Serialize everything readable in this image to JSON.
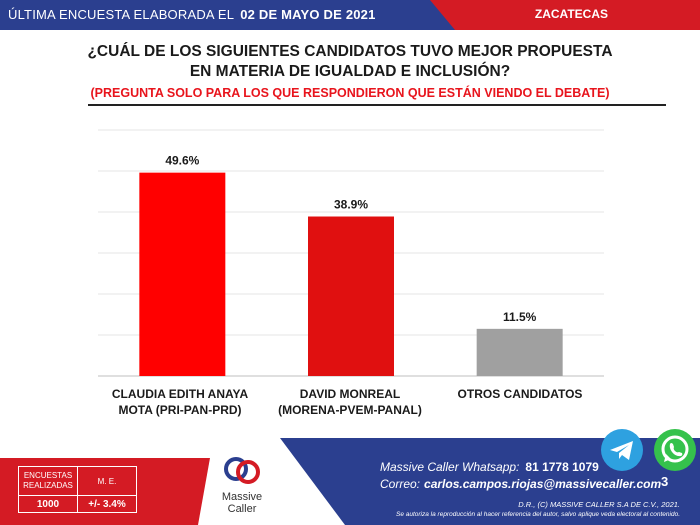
{
  "banner": {
    "prefix": "ÚLTIMA ENCUESTA ELABORADA EL",
    "date": "02 DE MAYO DE 2021",
    "region": "ZACATECAS"
  },
  "question": {
    "line1": "¿CUÁL DE LOS SIGUIENTES CANDIDATOS TUVO MEJOR PROPUESTA",
    "line2": "EN MATERIA DE IGUALDAD E INCLUSIÓN?",
    "note": "(PREGUNTA SOLO PARA LOS QUE RESPONDIERON QUE ESTÁN VIENDO EL DEBATE)"
  },
  "chart_data": {
    "type": "bar",
    "title": "¿CUÁL DE LOS SIGUIENTES CANDIDATOS TUVO MEJOR PROPUESTA EN MATERIA DE IGUALDAD E INCLUSIÓN?",
    "categories": [
      "CLAUDIA EDITH ANAYA\nMOTA (PRI-PAN-PRD)",
      "DAVID MONREAL\n(MORENA-PVEM-PANAL)",
      "OTROS CANDIDATOS"
    ],
    "values": [
      49.6,
      38.9,
      11.5
    ],
    "value_labels": [
      "49.6%",
      "38.9%",
      "11.5%"
    ],
    "colors": [
      "#ff0000",
      "#e01010",
      "#a0a0a0"
    ],
    "ylim": [
      0,
      60
    ],
    "grid": true,
    "xlabel": "",
    "ylabel": ""
  },
  "footer": {
    "whatsapp_label": "Massive Caller Whatsapp:",
    "whatsapp_number": "81 1778 1079",
    "mail_label": "Correo:",
    "mail": "carlos.campos.riojas@massivecaller.com",
    "rights": "D.R., (C) MASSIVE CALLER S.A DE C.V., 2021.",
    "notice": "Se autoriza la reproducción al hacer referencia del autor, salvo aplique veda electoral al contenido.",
    "stats_header1": "ENCUESTAS REALIZADAS",
    "stats_header2": "M. E.",
    "stats_value1": "1000",
    "stats_value2": "+/- 3.4%",
    "logo_line1": "Massive",
    "logo_line2": "Caller",
    "page": "3",
    "telegram_icon": "telegram-icon",
    "whatsapp_icon": "whatsapp-icon",
    "accent_blue": "#2b3f8f",
    "accent_red": "#d41b24"
  }
}
